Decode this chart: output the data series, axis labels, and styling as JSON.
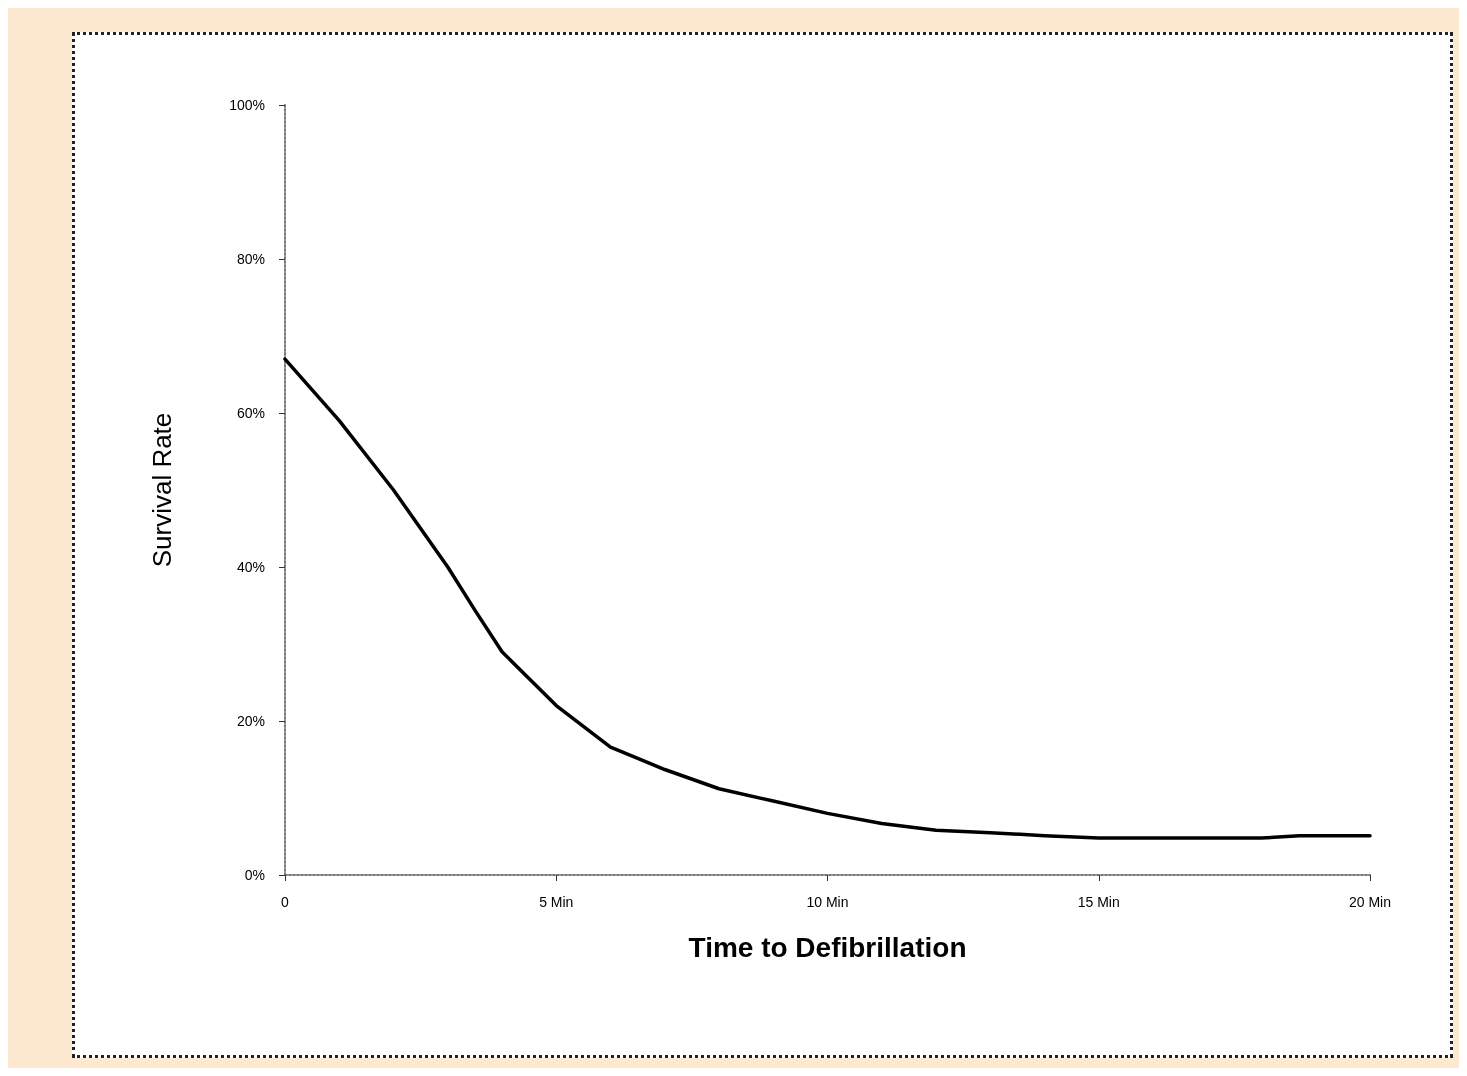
{
  "chart_data": {
    "type": "line",
    "xlabel": "Time to Defibrillation",
    "ylabel": "Survival Rate",
    "x": [
      0,
      1,
      2,
      3,
      3.5,
      4,
      5,
      6,
      7,
      8,
      9,
      10,
      11,
      12,
      13,
      14,
      15,
      16,
      18,
      18.7,
      20
    ],
    "series": [
      {
        "color": "#000000",
        "values": [
          67,
          59,
          50,
          40,
          34.4,
          29,
          22,
          16.6,
          13.7,
          11.2,
          9.6,
          8,
          6.7,
          5.8,
          5.5,
          5.1,
          4.8,
          4.8,
          4.8,
          5.1,
          5.1
        ]
      }
    ],
    "xlim": [
      0,
      20
    ],
    "xticks": [
      0,
      {
        "value": 5,
        "label": "5 Min"
      },
      {
        "value": 10,
        "label": "10 Min"
      },
      {
        "value": 15,
        "label": "15 Min"
      },
      {
        "value": 20,
        "label": "20 Min"
      }
    ],
    "ylim": [
      0,
      100
    ],
    "yticks": [
      {
        "value": 0,
        "label": "0%"
      },
      {
        "value": 20,
        "label": "20%"
      },
      {
        "value": 40,
        "label": "40%"
      },
      {
        "value": 60,
        "label": "60%"
      },
      {
        "value": 80,
        "label": "80%"
      },
      {
        "value": 100,
        "label": "100%"
      }
    ],
    "grid": false,
    "marker": "none",
    "line_style": "solid"
  }
}
